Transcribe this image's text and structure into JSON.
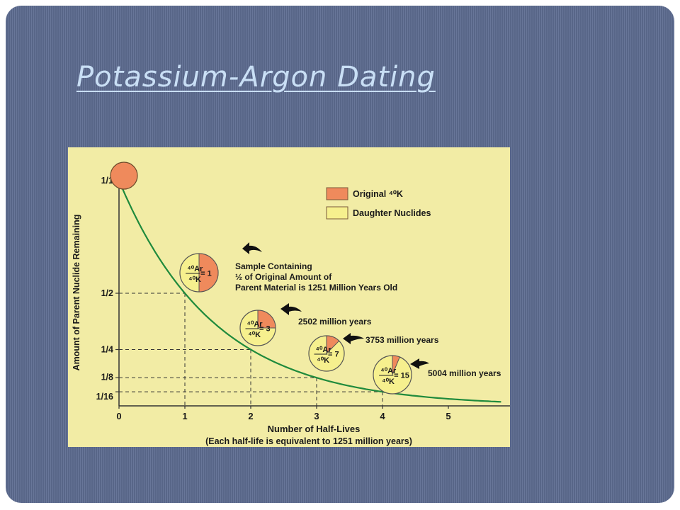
{
  "slide": {
    "title": "Potassium-Argon Dating"
  },
  "chart_data": {
    "type": "line",
    "xlabel": "Number of Half-Lives",
    "xlabel_note": "(Each half-life is equivalent to 1251 million years)",
    "ylabel": "Amount of Parent Nuclide Remaining",
    "x_ticks": [
      "0",
      "1",
      "2",
      "3",
      "4",
      "5"
    ],
    "y_ticks": [
      {
        "label": "1/1",
        "value": 1.0
      },
      {
        "label": "1/2",
        "value": 0.5
      },
      {
        "label": "1/4",
        "value": 0.25
      },
      {
        "label": "1/8",
        "value": 0.125
      },
      {
        "label": "1/16",
        "value": 0.0625
      }
    ],
    "xlim": [
      0,
      5.8
    ],
    "ylim": [
      0,
      1
    ],
    "curve_color": "#1f8a3c",
    "colors": {
      "original": "#ef8a5c",
      "daughter": "#f6f08e"
    },
    "legend": {
      "position": "top-right",
      "items": [
        {
          "label": "Original ⁴⁰K",
          "color": "#ef8a5c"
        },
        {
          "label": "Daughter Nuclides",
          "color": "#f6f08e"
        }
      ]
    },
    "samples": [
      {
        "half_lives": 0,
        "fraction_remaining": 1.0,
        "ratio_label": ""
      },
      {
        "half_lives": 1,
        "fraction_remaining": 0.5,
        "ratio_label": "= 1",
        "note_lines": [
          "Sample Containing",
          "½ of Original Amount of",
          "Parent Material is 1251 Million Years Old"
        ]
      },
      {
        "half_lives": 2,
        "fraction_remaining": 0.25,
        "ratio_label": "= 3",
        "note_lines": [
          "2502 million years"
        ]
      },
      {
        "half_lives": 3,
        "fraction_remaining": 0.125,
        "ratio_label": "= 7",
        "note_lines": [
          "3753 million years"
        ]
      },
      {
        "half_lives": 4,
        "fraction_remaining": 0.0625,
        "ratio_label": "= 15",
        "note_lines": [
          "5004 million years"
        ]
      }
    ],
    "ratio_numerator": "⁴⁰Ar",
    "ratio_denominator": "⁴⁰K"
  }
}
